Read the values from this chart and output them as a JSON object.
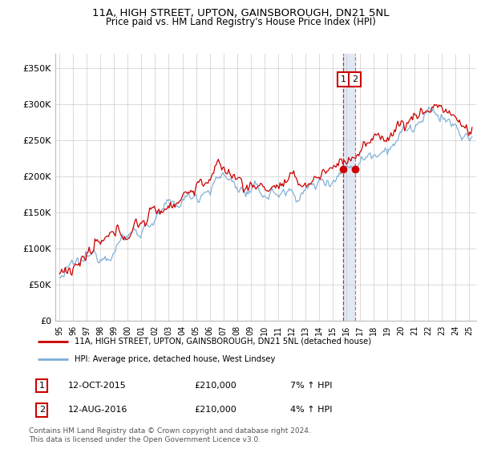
{
  "title": "11A, HIGH STREET, UPTON, GAINSBOROUGH, DN21 5NL",
  "subtitle": "Price paid vs. HM Land Registry's House Price Index (HPI)",
  "legend_line1": "11A, HIGH STREET, UPTON, GAINSBOROUGH, DN21 5NL (detached house)",
  "legend_line2": "HPI: Average price, detached house, West Lindsey",
  "annotation1_label": "1",
  "annotation1_date": "12-OCT-2015",
  "annotation1_price": "£210,000",
  "annotation1_hpi": "7% ↑ HPI",
  "annotation2_label": "2",
  "annotation2_date": "12-AUG-2016",
  "annotation2_price": "£210,000",
  "annotation2_hpi": "4% ↑ HPI",
  "footer": "Contains HM Land Registry data © Crown copyright and database right 2024.\nThis data is licensed under the Open Government Licence v3.0.",
  "line1_color": "#cc0000",
  "line2_color": "#7eadd4",
  "vline1_color": "#cc0000",
  "vline2_color": "#aac4e0",
  "marker_color": "#cc0000",
  "annotation_box_color": "#cc0000",
  "grid_color": "#cccccc",
  "ylim": [
    0,
    370000
  ],
  "yticks": [
    0,
    50000,
    100000,
    150000,
    200000,
    250000,
    300000,
    350000
  ],
  "ytick_labels": [
    "£0",
    "£50K",
    "£100K",
    "£150K",
    "£200K",
    "£250K",
    "£300K",
    "£350K"
  ],
  "start_year": 1995,
  "end_year": 2025,
  "t1_year": 2015.79,
  "t2_year": 2016.62,
  "t1_price": 210000,
  "t2_price": 210000
}
